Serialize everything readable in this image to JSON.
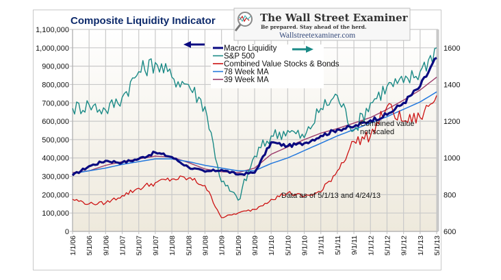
{
  "chart_data": {
    "type": "line",
    "title": "Composite Liquidity Indicator",
    "xlabel": "",
    "ylabel_left": "",
    "ylabel_right": "",
    "x_ticks": [
      "1/1/06",
      "5/1/06",
      "9/1/06",
      "1/1/07",
      "5/1/07",
      "9/1/07",
      "1/1/08",
      "5/1/08",
      "9/1/08",
      "1/1/09",
      "5/1/09",
      "9/1/09",
      "1/1/10",
      "5/1/10",
      "9/1/10",
      "1/1/11",
      "5/1/11",
      "9/1/11",
      "1/1/12",
      "5/1/12",
      "9/1/12",
      "1/1/13",
      "5/1/13"
    ],
    "y_left": {
      "min": 0,
      "max": 1100000,
      "ticks": [
        "0",
        "100,000",
        "200,000",
        "300,000",
        "400,000",
        "500,000",
        "600,000",
        "700,000",
        "800,000",
        "900,000",
        "1,000,000",
        "1,100,000"
      ]
    },
    "y_right": {
      "min": 600,
      "max": 1700,
      "ticks": [
        "600",
        "800",
        "1000",
        "1200",
        "1400",
        "1600"
      ]
    },
    "grid": true,
    "legend_position": "top-center",
    "series": [
      {
        "name": "Macro Liquidity",
        "axis": "left",
        "color": "#0a0a80",
        "values": [
          305000,
          355000,
          385000,
          375000,
          395000,
          430000,
          405000,
          350000,
          325000,
          335000,
          310000,
          320000,
          485000,
          465000,
          480000,
          520000,
          555000,
          570000,
          605000,
          635000,
          700000,
          790000,
          945000
        ]
      },
      {
        "name": "S&P 500",
        "axis": "right",
        "color": "#1a8a86",
        "values": [
          1270,
          1290,
          1260,
          1330,
          1470,
          1520,
          1440,
          1400,
          1280,
          870,
          770,
          1010,
          1120,
          1150,
          1110,
          1270,
          1340,
          1150,
          1300,
          1390,
          1410,
          1470,
          1600
        ]
      },
      {
        "name": "Combined Value Stocks & Bonds",
        "axis": "left",
        "color": "#cc1111",
        "values": [
          175000,
          150000,
          155000,
          195000,
          235000,
          265000,
          285000,
          290000,
          250000,
          75000,
          100000,
          120000,
          175000,
          210000,
          190000,
          215000,
          330000,
          490000,
          520000,
          680000,
          600000,
          620000,
          740000
        ]
      },
      {
        "name": "78 Week MA",
        "axis": "left",
        "color": "#2277dd",
        "values": [
          315000,
          330000,
          345000,
          365000,
          380000,
          395000,
          395000,
          380000,
          360000,
          345000,
          330000,
          330000,
          370000,
          400000,
          440000,
          480000,
          520000,
          555000,
          590000,
          625000,
          665000,
          705000,
          760000
        ]
      },
      {
        "name": "39 Week MA",
        "axis": "left",
        "color": "#9b3a6a",
        "values": [
          320000,
          330000,
          360000,
          380000,
          395000,
          410000,
          405000,
          375000,
          340000,
          325000,
          320000,
          345000,
          420000,
          460000,
          500000,
          535000,
          560000,
          590000,
          620000,
          665000,
          715000,
          770000,
          840000
        ]
      }
    ],
    "annotations": [
      {
        "text": "Combined value",
        "position": "right-middle"
      },
      {
        "text": "not scaled",
        "position": "right-middle"
      },
      {
        "text": "Data as of 5/1/13 and 4/24/13",
        "position": "bottom-right"
      }
    ],
    "arrows": [
      {
        "direction": "left",
        "color": "#0a0a80",
        "meaning": "Macro Liquidity on left axis"
      },
      {
        "direction": "right",
        "color": "#1a8a86",
        "meaning": "S&P 500 on right axis"
      }
    ]
  },
  "logo": {
    "title": "The Wall Street Examiner",
    "tagline": "Be prepared. Stay ahead of the herd.",
    "url": "Wallstreetexaminer.com",
    "icon": "magnifier-chart-icon"
  }
}
